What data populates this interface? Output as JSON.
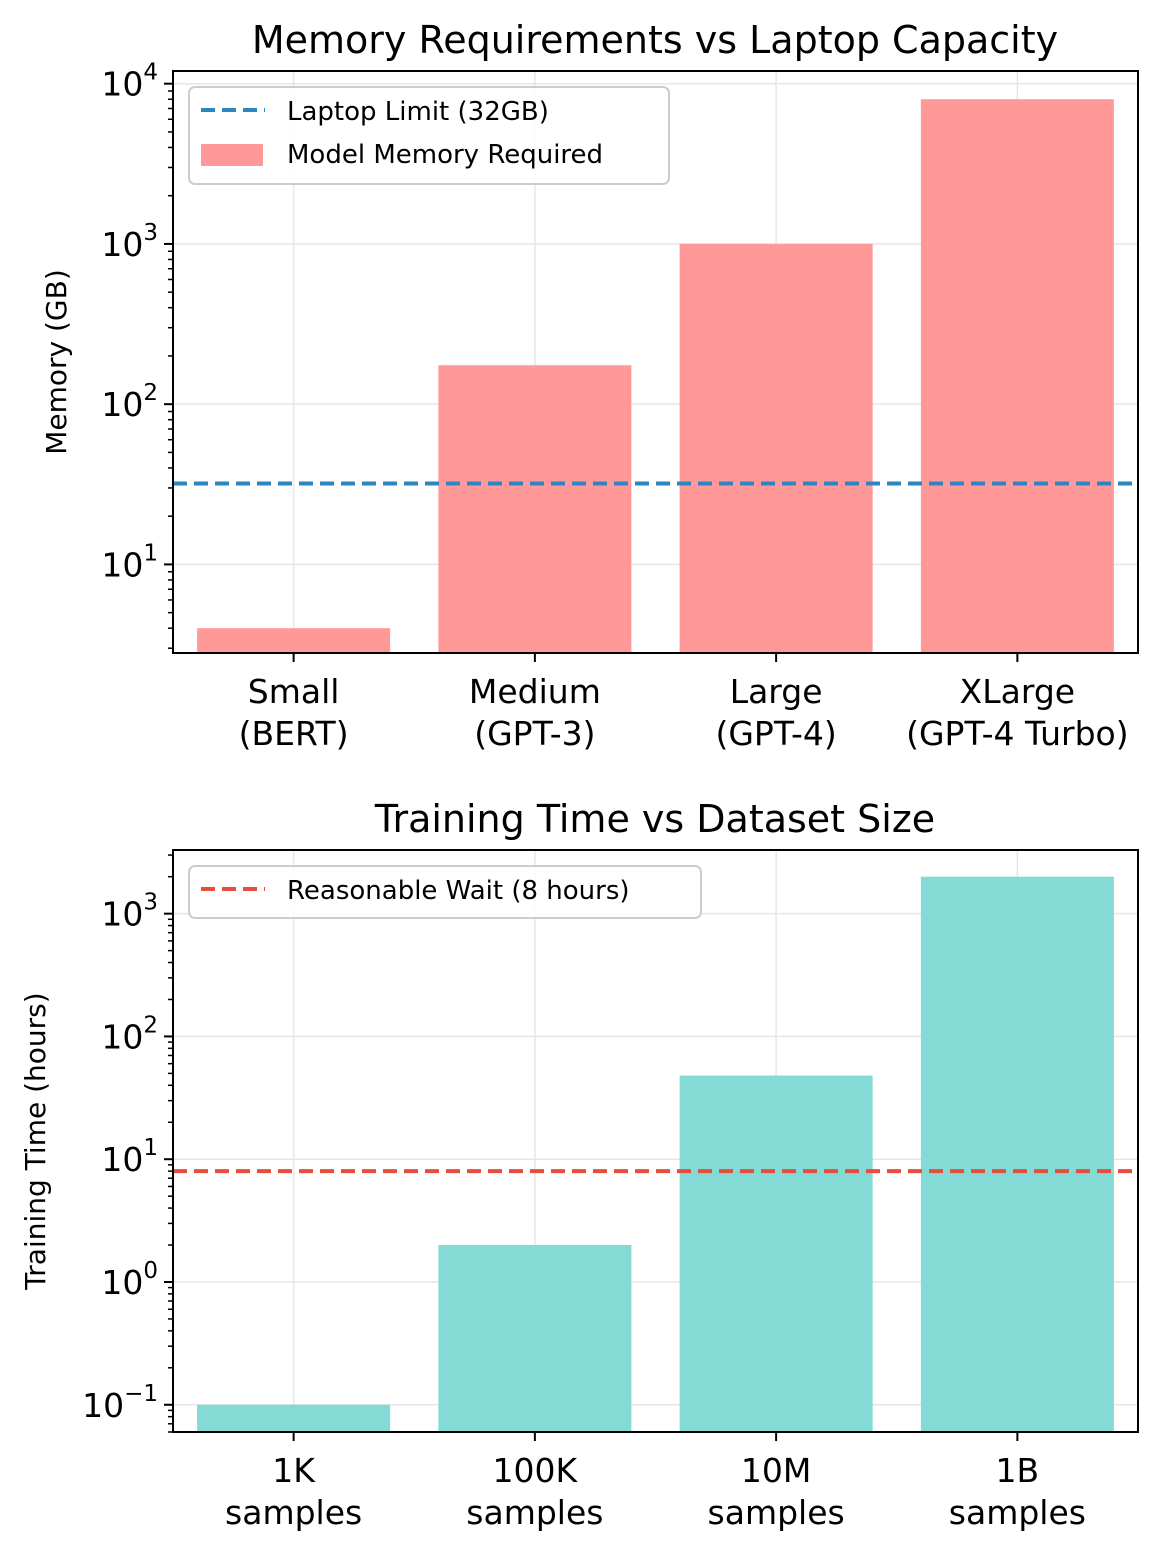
{
  "chart_data": [
    {
      "type": "bar",
      "title": "Memory Requirements vs Laptop Capacity",
      "xlabel": "",
      "ylabel": "Memory (GB)",
      "yscale": "log",
      "ylim": [
        2.8,
        12000
      ],
      "yticks": [
        {
          "value": 10,
          "base": "10",
          "exp": "1"
        },
        {
          "value": 100,
          "base": "10",
          "exp": "2"
        },
        {
          "value": 1000,
          "base": "10",
          "exp": "3"
        },
        {
          "value": 10000,
          "base": "10",
          "exp": "4"
        }
      ],
      "categories": [
        [
          "Small",
          "(BERT)"
        ],
        [
          "Medium",
          "(GPT-3)"
        ],
        [
          "Large",
          "(GPT-4)"
        ],
        [
          "XLarge",
          "(GPT-4 Turbo)"
        ]
      ],
      "series": [
        {
          "name": "Model Memory Required",
          "color": "#ff9999",
          "values": [
            4,
            175,
            1000,
            8000
          ]
        }
      ],
      "reference_line": {
        "name": "Laptop Limit (32GB)",
        "value": 32,
        "color": "#2e86c1",
        "style": "dashed"
      },
      "legend": {
        "position": "upper-left",
        "entries": [
          "Laptop Limit (32GB)",
          "Model Memory Required"
        ]
      },
      "grid": true
    },
    {
      "type": "bar",
      "title": "Training Time vs Dataset Size",
      "xlabel": "",
      "ylabel": "Training Time (hours)",
      "yscale": "log",
      "ylim": [
        0.06,
        3300
      ],
      "yticks": [
        {
          "value": 0.1,
          "base": "10",
          "exp": "−1"
        },
        {
          "value": 1,
          "base": "10",
          "exp": "0"
        },
        {
          "value": 10,
          "base": "10",
          "exp": "1"
        },
        {
          "value": 100,
          "base": "10",
          "exp": "2"
        },
        {
          "value": 1000,
          "base": "10",
          "exp": "3"
        }
      ],
      "categories": [
        [
          "1K",
          "samples"
        ],
        [
          "100K",
          "samples"
        ],
        [
          "10M",
          "samples"
        ],
        [
          "1B",
          "samples"
        ]
      ],
      "series": [
        {
          "name": "Training Time",
          "color": "#84dad4",
          "values": [
            0.1,
            2,
            48,
            2000
          ]
        }
      ],
      "reference_line": {
        "name": "Reasonable Wait (8 hours)",
        "value": 8,
        "color": "#e74c3c",
        "style": "dashed"
      },
      "legend": {
        "position": "upper-left",
        "entries": [
          "Reasonable Wait (8 hours)"
        ]
      },
      "grid": true
    }
  ]
}
